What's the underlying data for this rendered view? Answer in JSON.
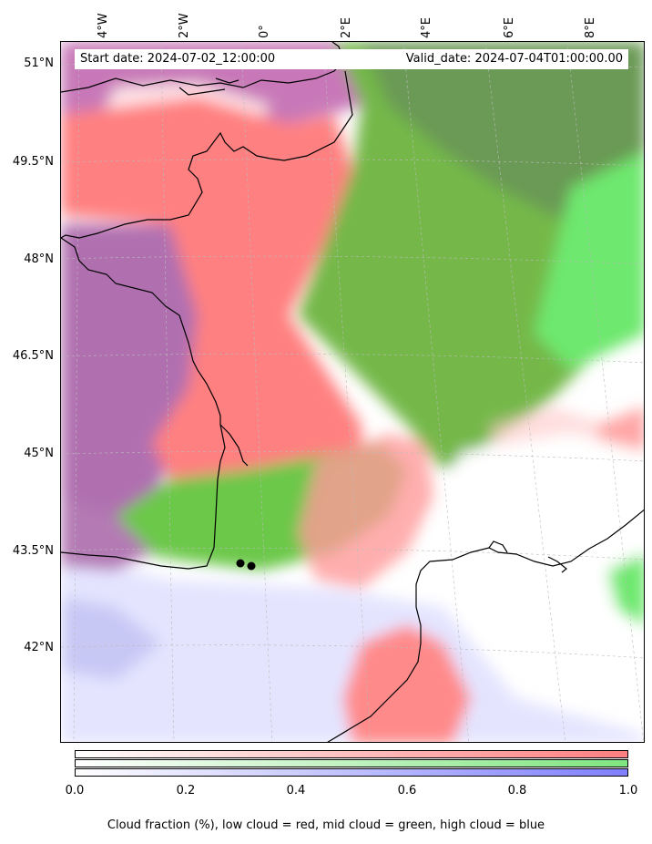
{
  "map": {
    "start_date": "Start date: 2024-07-02_12:00:00",
    "valid_date": "Valid_date: 2024-07-04T01:00:00.00",
    "longitude_labels": [
      "4°W",
      "2°W",
      "0°",
      "2°E",
      "4°E",
      "6°E",
      "8°E"
    ],
    "latitude_labels": [
      "51°N",
      "49.5°N",
      "48°N",
      "46.5°N",
      "45°N",
      "43.5°N",
      "42°N"
    ],
    "colors": {
      "low_cloud": "#ff7f7f",
      "mid_cloud": "#7fe57f",
      "high_cloud": "#7f7fff",
      "mixed": "#a070b0"
    }
  },
  "colorbar": {
    "ticks": [
      "0.0",
      "0.2",
      "0.4",
      "0.6",
      "0.8",
      "1.0"
    ],
    "caption": "Cloud fraction (%), low cloud = red, mid cloud = green, high cloud = blue"
  }
}
